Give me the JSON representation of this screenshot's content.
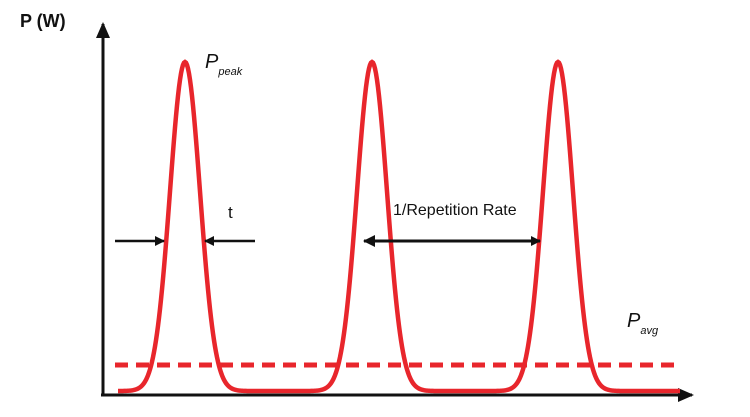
{
  "axis_label": "P (W)",
  "labels": {
    "peak": {
      "main": "P",
      "sub": "peak"
    },
    "width": "t",
    "period": "1/Repetition Rate",
    "avg": {
      "main": "P",
      "sub": "avg"
    }
  }
}
